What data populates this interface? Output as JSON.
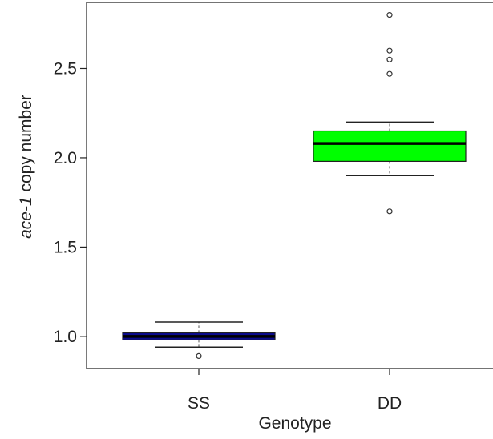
{
  "chart_data": {
    "type": "box",
    "xlabel": "Genotype",
    "ylabel_italic": "ace-1",
    "ylabel_rest": " copy number",
    "ylim": [
      0.82,
      2.87
    ],
    "yticks": [
      1.0,
      1.5,
      2.0,
      2.5
    ],
    "ytick_labels": [
      "1.0",
      "1.5",
      "2.0",
      "2.5"
    ],
    "categories": [
      "SS",
      "DD"
    ],
    "boxes": [
      {
        "category": "SS",
        "whisker_low": 0.94,
        "q1": 0.98,
        "median": 1.0,
        "q3": 1.02,
        "whisker_high": 1.08,
        "outliers": [
          0.89
        ],
        "color": "#0b0b8c"
      },
      {
        "category": "DD",
        "whisker_low": 1.9,
        "q1": 1.98,
        "median": 2.08,
        "q3": 2.15,
        "whisker_high": 2.2,
        "outliers": [
          1.7,
          2.47,
          2.55,
          2.6,
          2.8
        ],
        "color": "#00ff00"
      }
    ],
    "grid": false
  }
}
